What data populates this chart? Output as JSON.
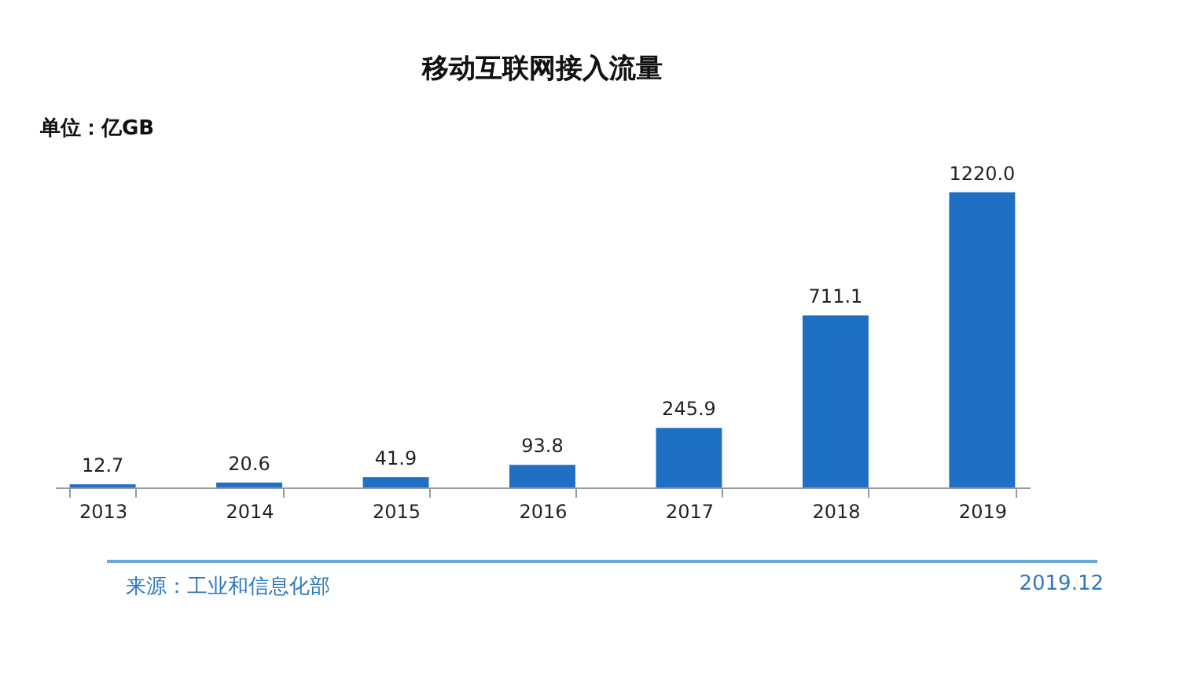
{
  "chart_data": {
    "type": "bar",
    "title": "移动互联网接入流量",
    "ylabel": "单位：亿GB",
    "categories": [
      "2013",
      "2014",
      "2015",
      "2016",
      "2017",
      "2018",
      "2019"
    ],
    "values": [
      12.7,
      20.6,
      41.9,
      93.8,
      245.9,
      711.1,
      1220.0
    ],
    "value_labels": [
      "12.7",
      "20.6",
      "41.9",
      "93.8",
      "245.9",
      "711.1",
      "1220.0"
    ],
    "color": "#1f6fc5",
    "grid": false,
    "annotations": [
      "来源：工业和信息化部",
      "2019.12"
    ]
  }
}
